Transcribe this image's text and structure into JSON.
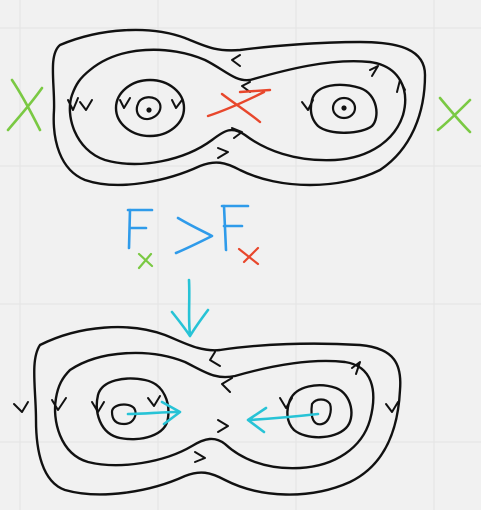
{
  "colors": {
    "background": "#f1f1f1",
    "grid": "#e4e4e4",
    "curve": "#111111",
    "blue": "#2f9bea",
    "green": "#7ac943",
    "red": "#e8472c",
    "cyan": "#27c3d6"
  },
  "formula": {
    "lhs": "F",
    "lhs_sub": "x",
    "relation": ">",
    "rhs": "F",
    "rhs_sub": "x"
  },
  "icons": {
    "transition_arrow": "down-arrow-icon",
    "left_marker": "green-x-icon",
    "right_marker": "green-x-icon",
    "saddle_marker": "red-x-icon"
  }
}
